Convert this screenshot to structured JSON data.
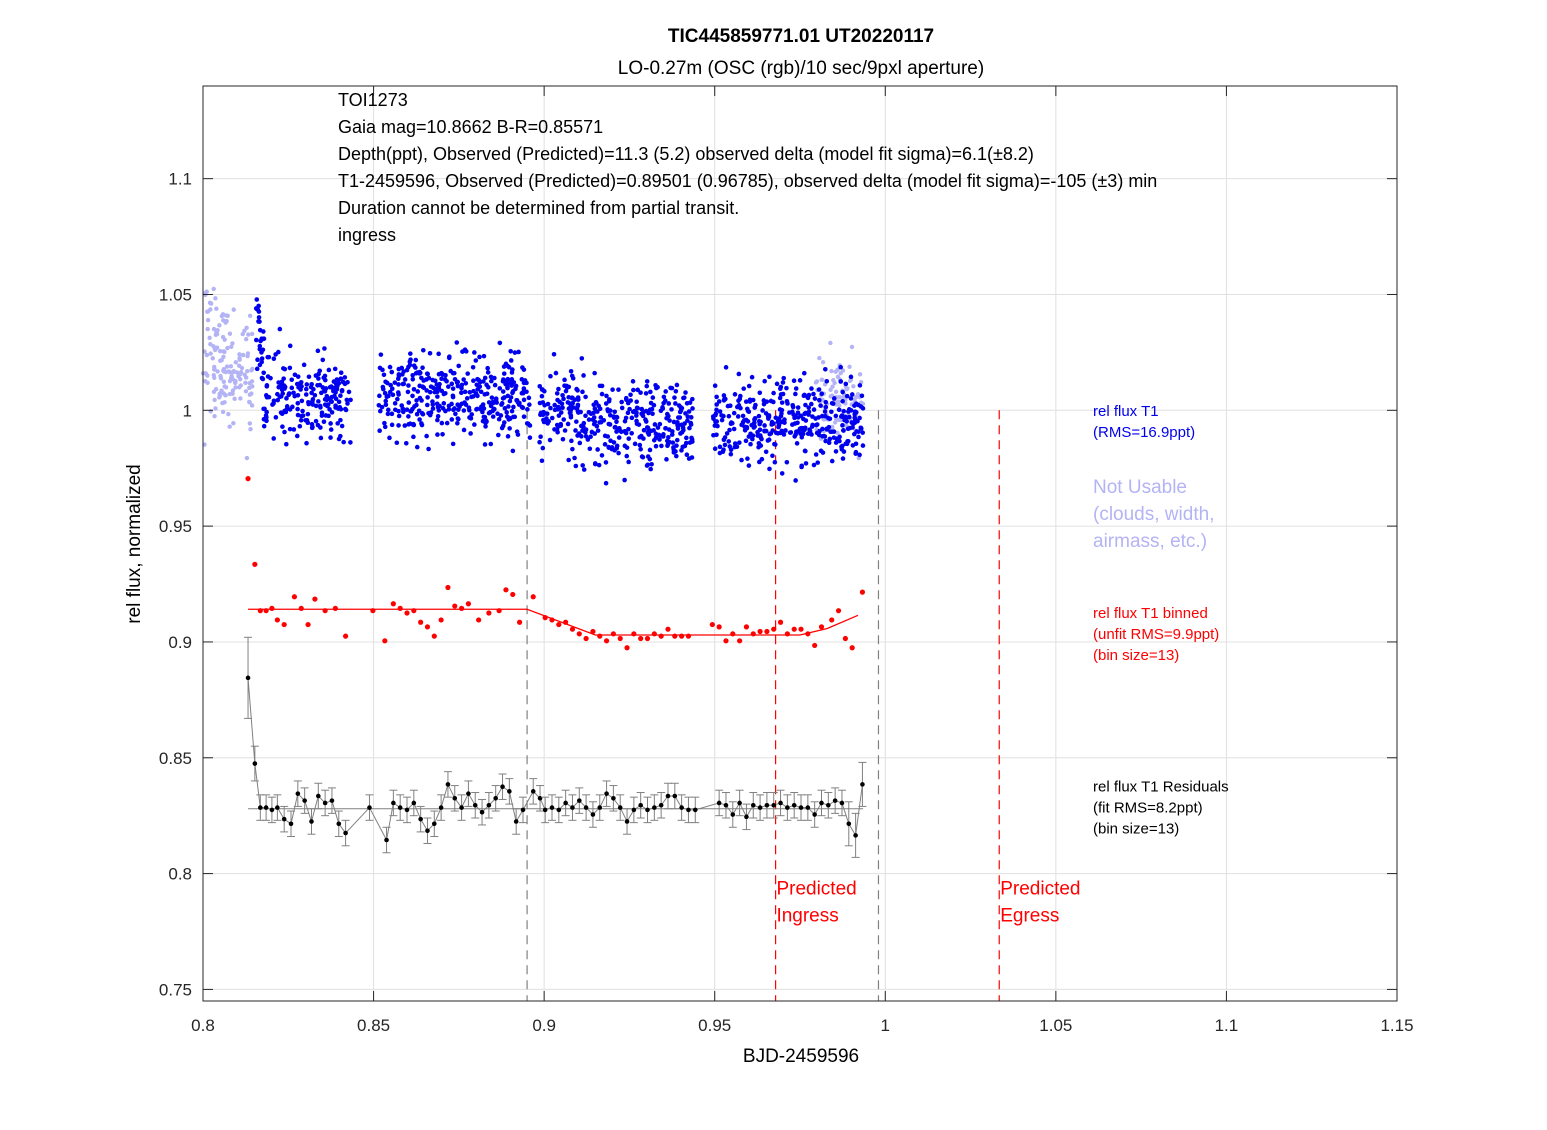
{
  "chart_data": {
    "type": "scatter",
    "title": "TIC445859771.01 UT20220117",
    "subtitle": "LO-0.27m (OSC (rgb)/10 sec/9pxl aperture)",
    "xlabel": "BJD-2459596",
    "ylabel": "rel flux, normalized",
    "xlim": [
      0.8,
      1.15
    ],
    "ylim": [
      0.745,
      1.14
    ],
    "grid": true,
    "x_ticks": [
      0.8,
      0.85,
      0.9,
      0.95,
      1.0,
      1.05,
      1.1,
      1.15
    ],
    "x_tick_labels": [
      "0.8",
      "0.85",
      "0.9",
      "0.95",
      "1",
      "1.05",
      "1.1",
      "1.15"
    ],
    "y_ticks": [
      0.75,
      0.8,
      0.85,
      0.9,
      0.95,
      1.0,
      1.05,
      1.1
    ],
    "y_tick_labels": [
      "0.75",
      "0.8",
      "0.85",
      "0.9",
      "0.95",
      "1",
      "1.05",
      "1.1"
    ],
    "info_text": [
      "TOI1273",
      "Gaia mag=10.8662  B-R=0.85571",
      "Depth(ppt),        Observed (Predicted)=11.3  (5.2) observed delta (model fit sigma)=6.1(±8.2)",
      "T1-2459596,       Observed (Predicted)=0.89501 (0.96785), observed delta (model fit sigma)=-105 (±3) min",
      "Duration cannot be determined from partial transit.",
      "ingress"
    ],
    "colors": {
      "rel_flux": "#0000ee",
      "not_usable": "#b3b3f5",
      "binned": "#ff0000",
      "residuals": "#000000",
      "residual_line": "#808080",
      "predicted": "#ff0000",
      "observed_marker": "#808080",
      "grid": "#e0e0e0"
    },
    "series": [
      {
        "name": "rel flux T1",
        "kind": "scatter",
        "baseline": 1.0,
        "rms": 0.0169,
        "x_segments": [
          [
            0.8155,
            0.8435
          ],
          [
            0.8515,
            0.896
          ],
          [
            0.8985,
            0.9435
          ],
          [
            0.9495,
            0.9935
          ]
        ]
      },
      {
        "name": "Not Usable",
        "kind": "scatter",
        "x_ranges": [
          [
            0.8,
            0.8145
          ],
          [
            0.9795,
            0.9935
          ]
        ],
        "center_start": 1.025,
        "center_end": 1.005,
        "spread": 0.03
      },
      {
        "name": "rel flux T1 binned",
        "kind": "binned",
        "values": [
          [
            0.8132,
            0.9705
          ],
          [
            0.8152,
            0.9335
          ],
          [
            0.8168,
            0.9135
          ],
          [
            0.8185,
            0.9135
          ],
          [
            0.8202,
            0.9145
          ],
          [
            0.8218,
            0.9095
          ],
          [
            0.8238,
            0.9075
          ],
          [
            0.8268,
            0.9195
          ],
          [
            0.8288,
            0.9145
          ],
          [
            0.8308,
            0.9075
          ],
          [
            0.8328,
            0.9185
          ],
          [
            0.8358,
            0.9135
          ],
          [
            0.8388,
            0.9145
          ],
          [
            0.8418,
            0.9025
          ],
          [
            0.8498,
            0.9135
          ],
          [
            0.8533,
            0.9005
          ],
          [
            0.8558,
            0.9165
          ],
          [
            0.8578,
            0.9145
          ],
          [
            0.8598,
            0.9125
          ],
          [
            0.8618,
            0.9135
          ],
          [
            0.8638,
            0.9085
          ],
          [
            0.8658,
            0.9065
          ],
          [
            0.8678,
            0.9025
          ],
          [
            0.8698,
            0.9095
          ],
          [
            0.8718,
            0.9235
          ],
          [
            0.8738,
            0.9155
          ],
          [
            0.8758,
            0.9145
          ],
          [
            0.8778,
            0.9165
          ],
          [
            0.8808,
            0.9095
          ],
          [
            0.8838,
            0.9125
          ],
          [
            0.8868,
            0.9135
          ],
          [
            0.8888,
            0.9225
          ],
          [
            0.8908,
            0.9205
          ],
          [
            0.8928,
            0.9085
          ],
          [
            0.8968,
            0.9195
          ],
          [
            0.9003,
            0.9105
          ],
          [
            0.9023,
            0.9095
          ],
          [
            0.9043,
            0.9075
          ],
          [
            0.9063,
            0.9085
          ],
          [
            0.9083,
            0.9055
          ],
          [
            0.9103,
            0.9035
          ],
          [
            0.9123,
            0.9015
          ],
          [
            0.9143,
            0.9045
          ],
          [
            0.9163,
            0.9025
          ],
          [
            0.9183,
            0.9005
          ],
          [
            0.9203,
            0.9035
          ],
          [
            0.9223,
            0.9015
          ],
          [
            0.9243,
            0.8975
          ],
          [
            0.9263,
            0.9035
          ],
          [
            0.9283,
            0.9015
          ],
          [
            0.9303,
            0.9015
          ],
          [
            0.9323,
            0.9035
          ],
          [
            0.9343,
            0.9025
          ],
          [
            0.9363,
            0.9055
          ],
          [
            0.9383,
            0.9025
          ],
          [
            0.9403,
            0.9025
          ],
          [
            0.9423,
            0.9025
          ],
          [
            0.9493,
            0.9075
          ],
          [
            0.9513,
            0.9065
          ],
          [
            0.9533,
            0.9005
          ],
          [
            0.9553,
            0.9035
          ],
          [
            0.9573,
            0.9005
          ],
          [
            0.9593,
            0.9065
          ],
          [
            0.9613,
            0.9035
          ],
          [
            0.9633,
            0.9045
          ],
          [
            0.9653,
            0.9045
          ],
          [
            0.9673,
            0.9055
          ],
          [
            0.9693,
            0.9085
          ],
          [
            0.9713,
            0.9035
          ],
          [
            0.9733,
            0.9055
          ],
          [
            0.9753,
            0.9055
          ],
          [
            0.9773,
            0.9035
          ],
          [
            0.9793,
            0.8985
          ],
          [
            0.9813,
            0.9065
          ],
          [
            0.9843,
            0.9095
          ],
          [
            0.9863,
            0.9135
          ],
          [
            0.9883,
            0.9015
          ],
          [
            0.9903,
            0.8975
          ],
          [
            0.9933,
            0.9215
          ]
        ]
      },
      {
        "name": "transit model",
        "kind": "line",
        "values": [
          [
            0.8132,
            0.9141
          ],
          [
            0.895,
            0.9141
          ],
          [
            0.915,
            0.903
          ],
          [
            0.975,
            0.903
          ],
          [
            0.983,
            0.9058
          ],
          [
            0.992,
            0.9115
          ]
        ]
      },
      {
        "name": "rel flux T1 Residuals",
        "kind": "residuals",
        "baseline": 0.828,
        "values": [
          [
            0.8132,
            0.8845
          ],
          [
            0.8152,
            0.8475
          ],
          [
            0.8168,
            0.8285
          ],
          [
            0.8185,
            0.8285
          ],
          [
            0.8202,
            0.8275
          ],
          [
            0.8218,
            0.8285
          ],
          [
            0.8238,
            0.8235
          ],
          [
            0.8258,
            0.8215
          ],
          [
            0.8278,
            0.8345
          ],
          [
            0.8298,
            0.8315
          ],
          [
            0.8318,
            0.8225
          ],
          [
            0.8338,
            0.8335
          ],
          [
            0.8358,
            0.8305
          ],
          [
            0.8378,
            0.8315
          ],
          [
            0.8398,
            0.8215
          ],
          [
            0.8418,
            0.8175
          ],
          [
            0.8488,
            0.8285
          ],
          [
            0.8538,
            0.8145
          ],
          [
            0.8558,
            0.8305
          ],
          [
            0.8578,
            0.8285
          ],
          [
            0.8598,
            0.8275
          ],
          [
            0.8618,
            0.8305
          ],
          [
            0.8638,
            0.8235
          ],
          [
            0.8658,
            0.8185
          ],
          [
            0.8678,
            0.8215
          ],
          [
            0.8698,
            0.8285
          ],
          [
            0.8718,
            0.8385
          ],
          [
            0.8738,
            0.8325
          ],
          [
            0.8758,
            0.8285
          ],
          [
            0.8778,
            0.8345
          ],
          [
            0.8798,
            0.8295
          ],
          [
            0.8818,
            0.8265
          ],
          [
            0.8838,
            0.8295
          ],
          [
            0.8858,
            0.8325
          ],
          [
            0.8878,
            0.8375
          ],
          [
            0.8898,
            0.8355
          ],
          [
            0.8918,
            0.8225
          ],
          [
            0.8938,
            0.8275
          ],
          [
            0.8968,
            0.8355
          ],
          [
            0.8988,
            0.8325
          ],
          [
            0.9003,
            0.8275
          ],
          [
            0.9023,
            0.8285
          ],
          [
            0.9043,
            0.8275
          ],
          [
            0.9063,
            0.8305
          ],
          [
            0.9083,
            0.8285
          ],
          [
            0.9103,
            0.8315
          ],
          [
            0.9123,
            0.8285
          ],
          [
            0.9143,
            0.8255
          ],
          [
            0.9163,
            0.8285
          ],
          [
            0.9183,
            0.8345
          ],
          [
            0.9203,
            0.8325
          ],
          [
            0.9223,
            0.8285
          ],
          [
            0.9243,
            0.8225
          ],
          [
            0.9263,
            0.8275
          ],
          [
            0.9283,
            0.8295
          ],
          [
            0.9303,
            0.8275
          ],
          [
            0.9323,
            0.8285
          ],
          [
            0.9343,
            0.8295
          ],
          [
            0.9363,
            0.8335
          ],
          [
            0.9383,
            0.8335
          ],
          [
            0.9403,
            0.8285
          ],
          [
            0.9423,
            0.8275
          ],
          [
            0.9443,
            0.8275
          ],
          [
            0.9513,
            0.8305
          ],
          [
            0.9533,
            0.8295
          ],
          [
            0.9553,
            0.8255
          ],
          [
            0.9573,
            0.8305
          ],
          [
            0.9593,
            0.8245
          ],
          [
            0.9613,
            0.8295
          ],
          [
            0.9633,
            0.8285
          ],
          [
            0.9653,
            0.8295
          ],
          [
            0.9673,
            0.8295
          ],
          [
            0.9693,
            0.8305
          ],
          [
            0.9713,
            0.8285
          ],
          [
            0.9733,
            0.8295
          ],
          [
            0.9753,
            0.8285
          ],
          [
            0.9773,
            0.8285
          ],
          [
            0.9793,
            0.8255
          ],
          [
            0.9813,
            0.8305
          ],
          [
            0.9833,
            0.8295
          ],
          [
            0.9853,
            0.8315
          ],
          [
            0.9873,
            0.8305
          ],
          [
            0.9893,
            0.8215
          ],
          [
            0.9913,
            0.8165
          ],
          [
            0.9933,
            0.8385
          ]
        ],
        "error": 0.0055
      }
    ],
    "vertical_lines": [
      {
        "x": 0.895,
        "style": "dashed",
        "color": "#808080",
        "y_top": 1.0,
        "y_bottom": 0.745
      },
      {
        "x": 0.998,
        "style": "dashed",
        "color": "#808080",
        "y_top": 1.0,
        "y_bottom": 0.745
      },
      {
        "x": 0.96785,
        "style": "dashed",
        "color": "#ff0000",
        "y_top": 1.0,
        "y_bottom": 0.745
      },
      {
        "x": 1.0334,
        "style": "dashed",
        "color": "#ff0000",
        "y_top": 1.0,
        "y_bottom": 0.745
      }
    ],
    "annotations": [
      {
        "lines": [
          "Predicted",
          "Ingress"
        ],
        "x": 0.9678,
        "y": 0.791,
        "color": "#ff0000"
      },
      {
        "lines": [
          "Predicted",
          "Egress"
        ],
        "x": 1.0334,
        "y": 0.791,
        "color": "#ff0000"
      }
    ],
    "legend": [
      {
        "lines": [
          "rel flux T1",
          "(RMS=16.9ppt)"
        ],
        "color": "#0000ee",
        "y": 0.9975,
        "size": "small"
      },
      {
        "lines": [
          "Not Usable",
          "(clouds, width,",
          "airmass, etc.)"
        ],
        "color": "#b3b3f5",
        "y": 0.9643,
        "size": "large"
      },
      {
        "lines": [
          "rel flux T1 binned",
          "(unfit RMS=9.9ppt)",
          "(bin size=13)"
        ],
        "color": "#ff0000",
        "y": 0.9103,
        "size": "small"
      },
      {
        "lines": [
          "rel flux T1 Residuals",
          "(fit RMS=8.2ppt)",
          "(bin size=13)"
        ],
        "color": "#000000",
        "y": 0.8354,
        "size": "small"
      }
    ]
  }
}
